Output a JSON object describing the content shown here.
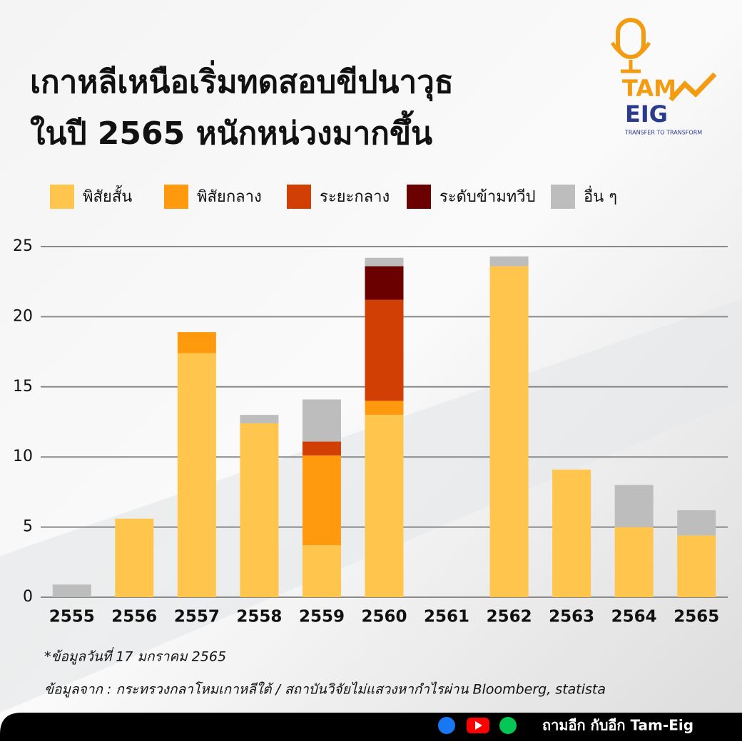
{
  "chart_data": {
    "type": "stacked_bar",
    "title": [
      "เกาหลีเหนือเริ่มทดสอบขีปนาวุธ",
      "ในปี 2565 หนักหน่วงมากขึ้น"
    ],
    "categories": [
      "2555",
      "2556",
      "2557",
      "2558",
      "2559",
      "2560",
      "2561",
      "2562",
      "2563",
      "2564",
      "2565"
    ],
    "series": [
      {
        "name": "พิสัยสั้น",
        "color": "#ffc54d",
        "values": [
          0,
          5.6,
          17.4,
          12.4,
          3.7,
          13,
          0,
          23.6,
          9.1,
          5,
          4.4
        ]
      },
      {
        "name": "พิสัยกลาง",
        "color": "#ff9a0e",
        "values": [
          0,
          0,
          1.5,
          0,
          6.4,
          1,
          0,
          0,
          0,
          0,
          0
        ]
      },
      {
        "name": "ระยะกลาง",
        "color": "#d23f04",
        "values": [
          0,
          0,
          0,
          0,
          1,
          7.2,
          0,
          0,
          0,
          0,
          0
        ]
      },
      {
        "name": "ระดับข้ามทวีป",
        "color": "#6a0000",
        "values": [
          0,
          0,
          0,
          0,
          0,
          2.4,
          0,
          0,
          0,
          0,
          0
        ]
      },
      {
        "name": "อื่น ๆ",
        "color": "#bdbdbd",
        "values": [
          0.9,
          0,
          0,
          0.6,
          3,
          0.6,
          0,
          0.7,
          0,
          3,
          1.8
        ]
      }
    ],
    "ylim": [
      0,
      25
    ],
    "yticks": [
      0,
      5,
      10,
      15,
      20,
      25
    ],
    "grid": true
  },
  "notes": [
    "*ข้อมูลวันที่ 17 มกราคม 2565",
    "ข้อมูลจาก : กระทรวงกลาโหมเกาหลีใต้ / สถาบันวิจัยไม่แสวงหากำไรผ่าน Bloomberg, statista"
  ],
  "logo": {
    "line1": "TAM",
    "line2": "EIG",
    "tagline": "TRANSFER TO TRANSFORM"
  },
  "footer": {
    "text": "ถามอีก กับอีก Tam-Eig"
  }
}
